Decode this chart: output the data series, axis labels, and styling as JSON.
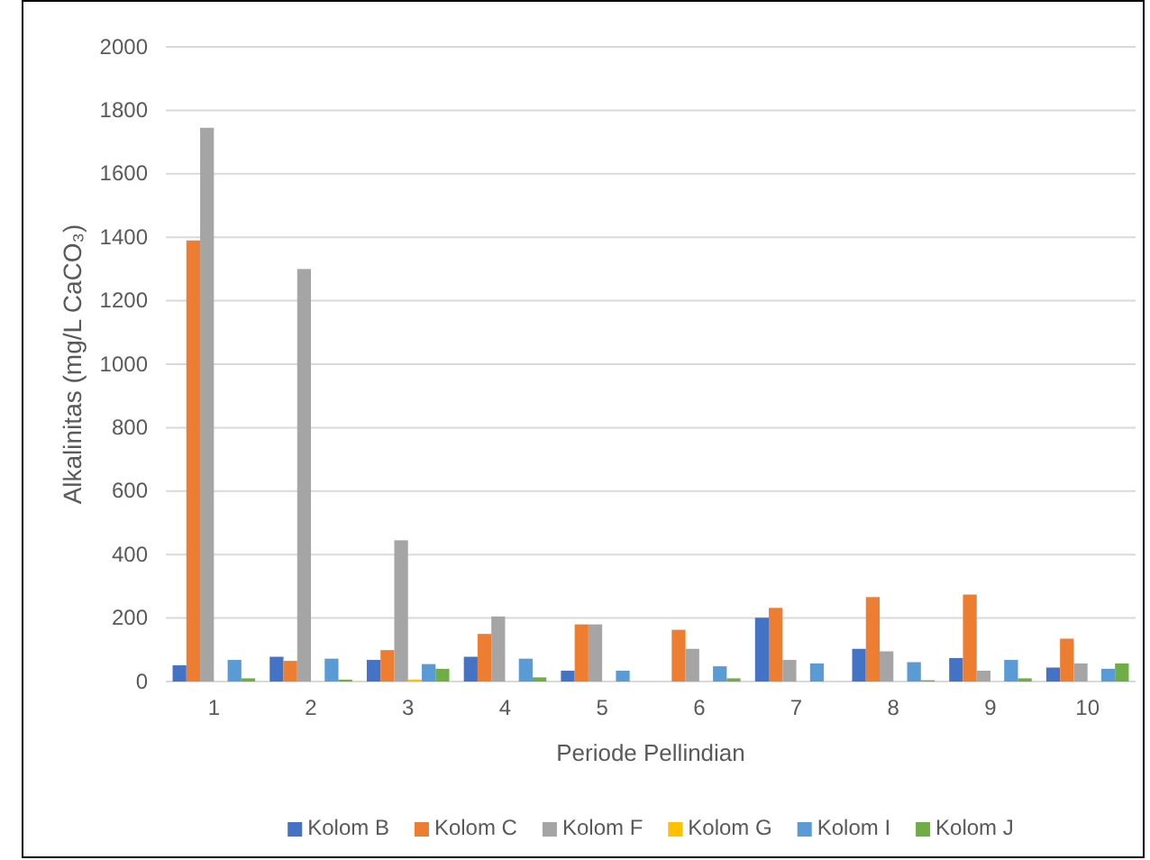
{
  "chart_data": {
    "type": "bar",
    "xlabel": "Periode Pellindian",
    "ylabel": "Alkalinitas (mg/L CaCO₃)",
    "categories": [
      "1",
      "2",
      "3",
      "4",
      "5",
      "6",
      "7",
      "8",
      "9",
      "10"
    ],
    "series": [
      {
        "name": "Kolom B",
        "color": "#4472c4",
        "values": [
          51,
          78,
          68,
          78,
          34,
          0,
          201,
          103,
          74,
          44
        ]
      },
      {
        "name": "Kolom C",
        "color": "#ed7d31",
        "values": [
          1390,
          65,
          99,
          150,
          180,
          163,
          232,
          266,
          274,
          135
        ]
      },
      {
        "name": "Kolom F",
        "color": "#a5a5a5",
        "values": [
          1745,
          1300,
          445,
          205,
          180,
          103,
          68,
          95,
          34,
          57
        ]
      },
      {
        "name": "Kolom G",
        "color": "#ffc000",
        "values": [
          0,
          0,
          6,
          0,
          0,
          0,
          0,
          0,
          0,
          0
        ]
      },
      {
        "name": "Kolom I",
        "color": "#5b9bd5",
        "values": [
          68,
          72,
          55,
          72,
          34,
          48,
          57,
          61,
          68,
          40
        ]
      },
      {
        "name": "Kolom J",
        "color": "#70ad47",
        "values": [
          10,
          6,
          40,
          13,
          0,
          10,
          0,
          4,
          10,
          57
        ]
      }
    ],
    "ylim": [
      0,
      2000
    ],
    "yticks": [
      0,
      200,
      400,
      600,
      800,
      1000,
      1200,
      1400,
      1600,
      1800,
      2000
    ],
    "grid": "y",
    "legend": "bottom"
  }
}
